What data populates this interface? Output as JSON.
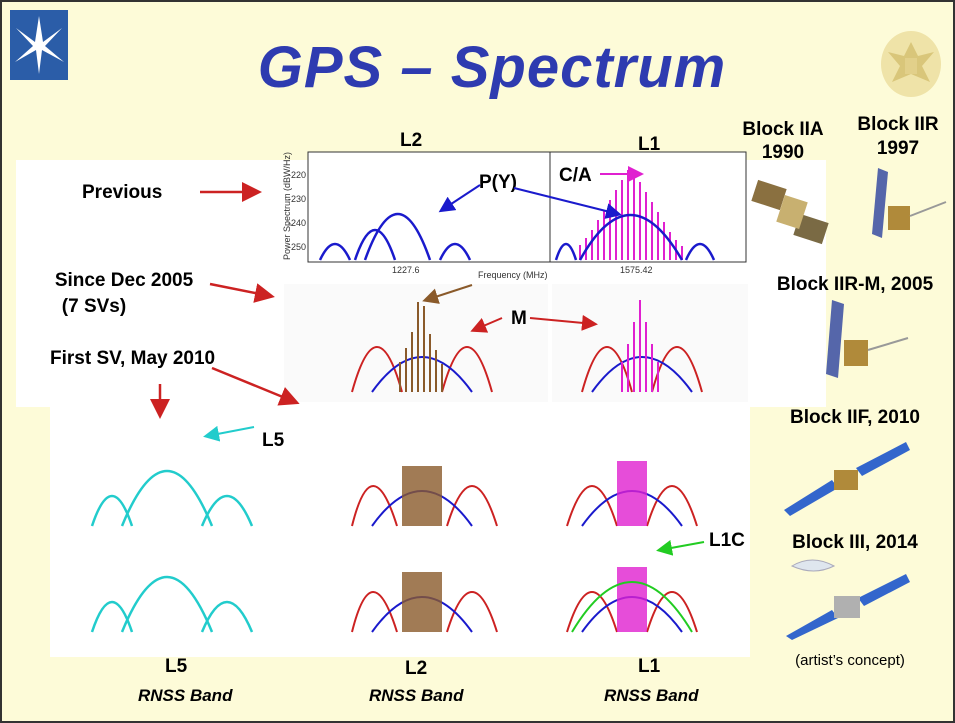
{
  "title": "GPS  – Spectrum",
  "rows": {
    "previous": "Previous",
    "since_dec_2005": "Since Dec 2005",
    "since_svs": "(7 SVs)",
    "first_sv": "First SV, May 2010"
  },
  "band_labels": {
    "l2_top": "L2",
    "l1_top": "L1",
    "l5_bottom": "L5",
    "l2_bottom": "L2",
    "l1_bottom": "L1",
    "rnss": "RNSS Band"
  },
  "signal_labels": {
    "py": "P(Y)",
    "ca": "C/A",
    "m": "M",
    "l5": "L5",
    "l1c": "L1C"
  },
  "chart_axis": {
    "ylabel": "Power Spectrum (dBW/Hz)",
    "xlabel": "Frequency (MHz)",
    "yticks": [
      "-220",
      "-230",
      "-240",
      "-250"
    ],
    "xtick_l2": "1227.6",
    "xtick_l1": "1575.42"
  },
  "satellites": {
    "block_iia": "Block IIA",
    "block_iia_year": "1990",
    "block_iir": "Block IIR",
    "block_iir_year": "1997",
    "block_iirm": "Block IIR-M, 2005",
    "block_iif": "Block IIF, 2010",
    "block_iii": "Block III, 2014",
    "artist": "(artist’s concept)"
  },
  "colors": {
    "title": "#2e3bb0",
    "background": "#fdfbd8",
    "blue": "#1a1acc",
    "magenta": "#e020d0",
    "red": "#cc2222",
    "brown": "#8a5a2a",
    "cyan": "#22cccc",
    "green": "#22cc22"
  },
  "icons": {
    "logo": "star-logo-icon",
    "seal": "great-seal-icon"
  }
}
